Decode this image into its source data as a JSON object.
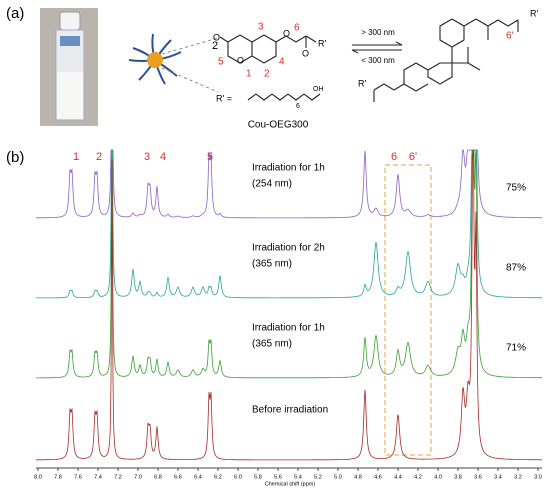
{
  "panel_a": {
    "label": "(a)",
    "coefficient": "2",
    "forward": "> 300 nm",
    "reverse": "< 300 nm",
    "r_label": "R' =",
    "oh": "OH",
    "repeat": "6",
    "compound": "Cou-OEG300",
    "atom_labels": [
      "3",
      "6",
      "5",
      "1",
      "2",
      "4"
    ],
    "dimer_label": "6'",
    "r_groups": [
      "R'",
      "R'",
      "R'"
    ]
  },
  "panel_b": {
    "label": "(b)",
    "peak_labels": [
      "1",
      "2",
      "3",
      "4",
      "5",
      "6",
      "6'"
    ],
    "spectra": [
      {
        "condition": "Irradiation for 1h",
        "wavelength": "(254 nm)",
        "conversion": "75%"
      },
      {
        "condition": "Irradiation for 2h",
        "wavelength": "(365 nm)",
        "conversion": "87%"
      },
      {
        "condition": "Irradiation for 1h",
        "wavelength": "(365 nm)",
        "conversion": "71%"
      },
      {
        "condition": "Before irradiation"
      }
    ],
    "x_ticks": [
      "8.0",
      "7.8",
      "7.6",
      "7.4",
      "7.2",
      "7.0",
      "6.8",
      "6.6",
      "6.4",
      "6.2",
      "6.0",
      "5.8",
      "5.6",
      "5.4",
      "5.2",
      "5.0",
      "4.8",
      "4.6",
      "4.4",
      "4.2",
      "4.0",
      "3.8",
      "3.6",
      "3.4",
      "3.2",
      "3.0"
    ],
    "x_axis_label": "Chemical shift (ppm)"
  }
}
